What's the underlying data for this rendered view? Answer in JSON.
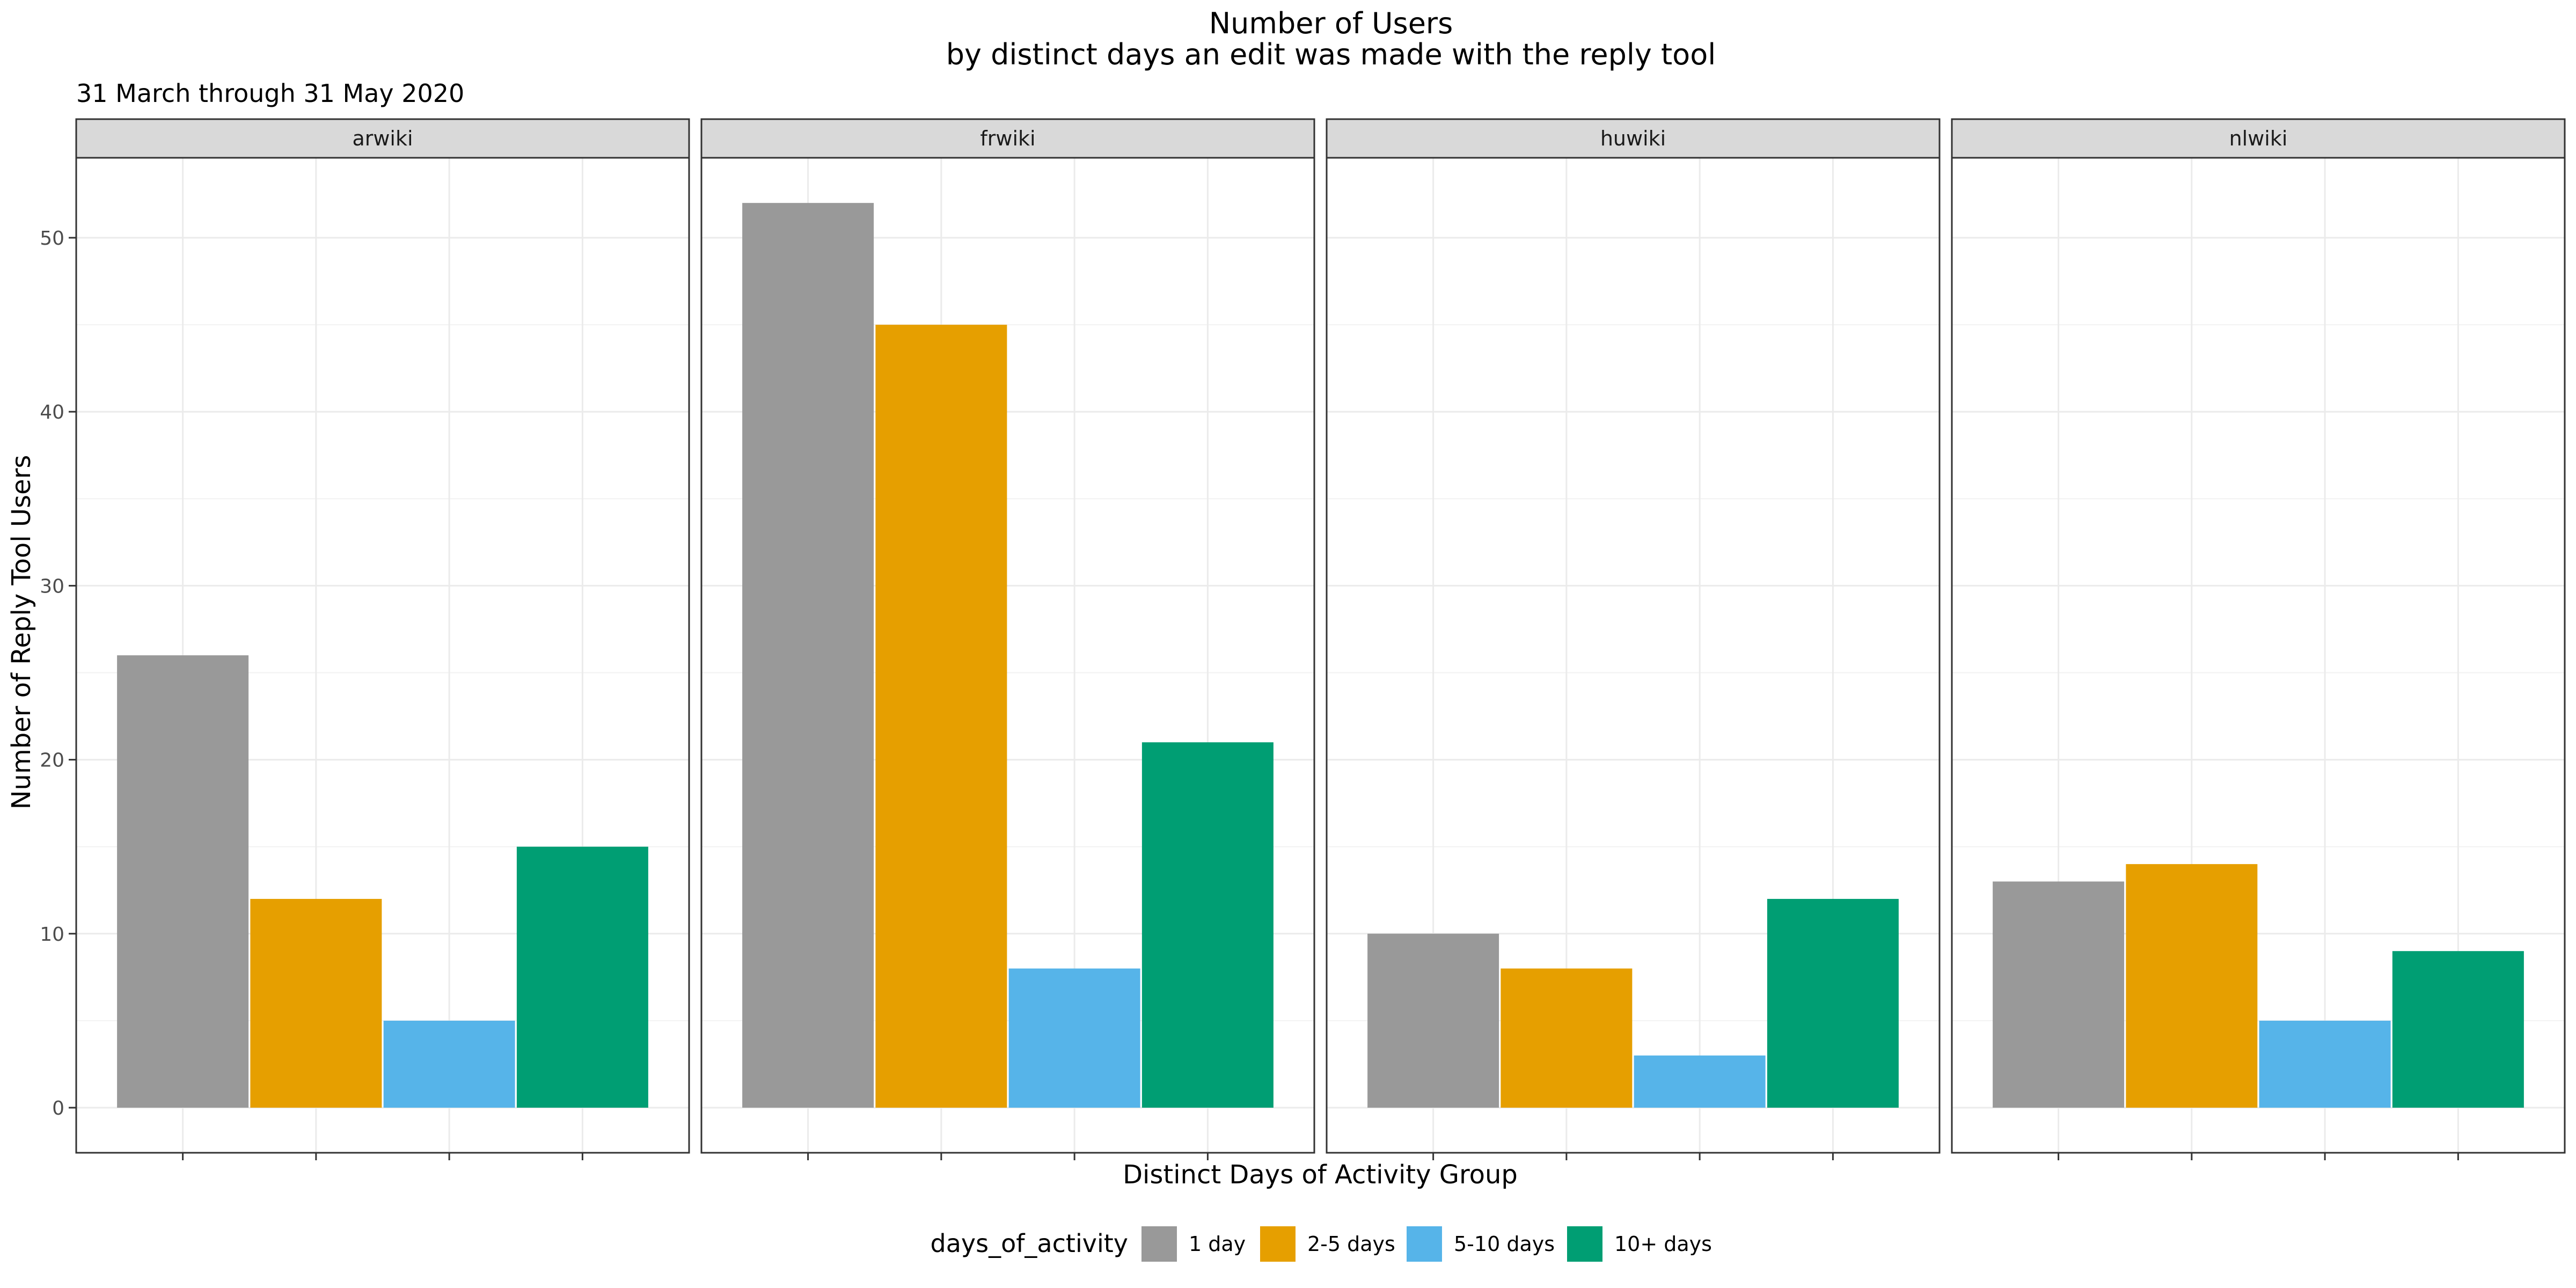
{
  "chart_data": {
    "type": "bar",
    "title": "Number of Users",
    "title_line2": "by distinct days an edit was made with the reply tool",
    "subtitle": "31 March through 31 May 2020",
    "xlabel": "Distinct Days of Activity Group",
    "ylabel": "Number of Reply Tool Users",
    "ylim": [
      0,
      55
    ],
    "yticks": [
      0,
      10,
      20,
      30,
      40,
      50
    ],
    "grid": true,
    "legend": {
      "title": "days_of_activity",
      "position": "bottom",
      "entries": [
        "1 day",
        "2-5 days",
        "5-10 days",
        "10+ days"
      ]
    },
    "categories": [
      "1 day",
      "2-5 days",
      "5-10 days",
      "10+ days"
    ],
    "colors": [
      "#999999",
      "#E69F00",
      "#56B4E9",
      "#009E73"
    ],
    "facets": [
      {
        "name": "arwiki",
        "values": [
          26,
          12,
          5,
          15
        ]
      },
      {
        "name": "frwiki",
        "values": [
          52,
          45,
          8,
          21
        ]
      },
      {
        "name": "huwiki",
        "values": [
          10,
          8,
          3,
          12
        ]
      },
      {
        "name": "nlwiki",
        "values": [
          13,
          14,
          5,
          9
        ]
      }
    ]
  }
}
